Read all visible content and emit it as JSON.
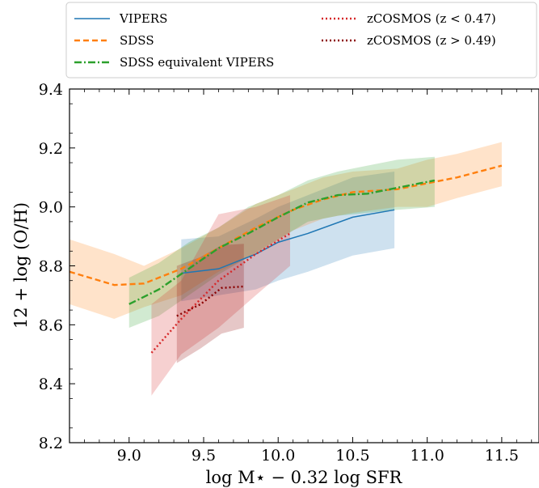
{
  "chart_data": {
    "type": "line",
    "xlabel": "log M⋆ − 0.32 log SFR",
    "ylabel": "12 + log (O/H)",
    "xlim": [
      8.6,
      11.75
    ],
    "ylim": [
      8.2,
      9.4
    ],
    "xticks": [
      "9.0",
      "9.5",
      "10.0",
      "10.5",
      "11.0",
      "11.5"
    ],
    "yticks": [
      "8.2",
      "8.4",
      "8.6",
      "8.8",
      "9.0",
      "9.2",
      "9.4"
    ],
    "legend_position": "top",
    "series": [
      {
        "name": "VIPERS",
        "color": "#1f77b4",
        "style": "solid",
        "x": [
          9.35,
          9.6,
          9.85,
          10.0,
          10.2,
          10.5,
          10.78
        ],
        "y": [
          8.775,
          8.79,
          8.84,
          8.88,
          8.91,
          8.965,
          8.99
        ],
        "lower": [
          8.68,
          8.7,
          8.72,
          8.75,
          8.78,
          8.835,
          8.86
        ],
        "upper": [
          8.89,
          8.9,
          8.96,
          9.0,
          9.04,
          9.1,
          9.12
        ]
      },
      {
        "name": "SDSS",
        "color": "#ff7f0e",
        "style": "dashed",
        "x": [
          8.6,
          8.9,
          9.1,
          9.35,
          9.6,
          9.85,
          10.1,
          10.3,
          10.5,
          10.8,
          11.0,
          11.2,
          11.5
        ],
        "y": [
          8.78,
          8.735,
          8.74,
          8.79,
          8.86,
          8.93,
          8.99,
          9.025,
          9.05,
          9.06,
          9.08,
          9.1,
          9.14
        ],
        "lower": [
          8.67,
          8.62,
          8.66,
          8.7,
          8.78,
          8.84,
          8.92,
          8.96,
          8.98,
          9.0,
          9.0,
          9.03,
          9.07
        ],
        "upper": [
          8.89,
          8.84,
          8.8,
          8.86,
          8.93,
          9.01,
          9.06,
          9.1,
          9.12,
          9.13,
          9.16,
          9.18,
          9.22
        ]
      },
      {
        "name": "SDSS equivalent VIPERS",
        "color": "#2ca02c",
        "style": "dashdot",
        "x": [
          9.0,
          9.2,
          9.4,
          9.6,
          9.8,
          10.0,
          10.2,
          10.4,
          10.6,
          10.8,
          11.05
        ],
        "y": [
          8.67,
          8.72,
          8.79,
          8.86,
          8.91,
          8.965,
          9.015,
          9.04,
          9.045,
          9.065,
          9.09
        ],
        "lower": [
          8.59,
          8.63,
          8.7,
          8.77,
          8.83,
          8.89,
          8.95,
          8.97,
          8.98,
          8.99,
          9.0
        ],
        "upper": [
          8.76,
          8.81,
          8.88,
          8.93,
          9.0,
          9.04,
          9.09,
          9.12,
          9.14,
          9.16,
          9.17
        ]
      },
      {
        "name": "zCOSMOS (z < 0.47)",
        "color": "#d62728",
        "style": "dotted",
        "x": [
          9.15,
          9.35,
          9.6,
          9.85,
          10.08
        ],
        "y": [
          8.505,
          8.62,
          8.75,
          8.84,
          8.91
        ],
        "lower": [
          8.36,
          8.5,
          8.59,
          8.7,
          8.8
        ],
        "upper": [
          8.67,
          8.75,
          8.975,
          9.0,
          9.04
        ]
      },
      {
        "name": "zCOSMOS (z > 0.49)",
        "color": "#8b0000",
        "style": "dotted",
        "x": [
          9.32,
          9.48,
          9.62,
          9.77
        ],
        "y": [
          8.63,
          8.67,
          8.725,
          8.73
        ],
        "lower": [
          8.47,
          8.52,
          8.57,
          8.59
        ],
        "upper": [
          8.8,
          8.83,
          8.87,
          8.875
        ]
      }
    ]
  }
}
